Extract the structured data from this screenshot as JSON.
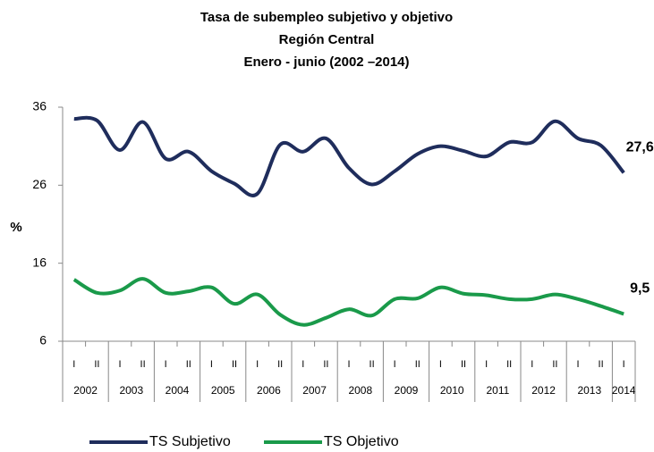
{
  "chart_data": {
    "type": "line",
    "title": [
      "Tasa de subempleo subjetivo y objetivo",
      "Región Central",
      "Enero - junio (2002 –2014)"
    ],
    "ylabel": "%",
    "categories": [
      "I",
      "II",
      "I",
      "II",
      "I",
      "II",
      "I",
      "II",
      "I",
      "II",
      "I",
      "II",
      "I",
      "II",
      "I",
      "II",
      "I",
      "II",
      "I",
      "II",
      "I",
      "II",
      "I",
      "II",
      "I"
    ],
    "years": [
      "2002",
      "2003",
      "2004",
      "2005",
      "2006",
      "2007",
      "2008",
      "2009",
      "2010",
      "2011",
      "2012",
      "2013",
      "2014"
    ],
    "ylim": [
      6,
      36
    ],
    "yticks": [
      6,
      16,
      26,
      36
    ],
    "grid": false,
    "legend": "bottom",
    "series": [
      {
        "name": "TS Subjetivo",
        "color": "#1f2d5c",
        "values": [
          34.5,
          34.3,
          30.5,
          34.1,
          29.4,
          30.3,
          27.8,
          26.2,
          24.9,
          31.2,
          30.3,
          32.0,
          28.2,
          26.1,
          27.8,
          30.0,
          31.0,
          30.4,
          29.7,
          31.5,
          31.5,
          34.2,
          32.0,
          31.1,
          27.6
        ],
        "value_labels": [
          null,
          null,
          null,
          null,
          null,
          null,
          null,
          null,
          null,
          null,
          null,
          null,
          null,
          null,
          null,
          null,
          null,
          null,
          null,
          null,
          null,
          null,
          null,
          null,
          "27,6"
        ]
      },
      {
        "name": "TS Objetivo",
        "color": "#1a9a4a",
        "values": [
          13.9,
          12.2,
          12.5,
          14.0,
          12.2,
          12.4,
          12.9,
          10.8,
          12.0,
          9.4,
          8.1,
          9.0,
          10.1,
          9.3,
          11.4,
          11.5,
          12.9,
          12.1,
          11.9,
          11.4,
          11.4,
          12.0,
          11.4,
          10.5,
          9.5
        ],
        "value_labels": [
          null,
          null,
          null,
          null,
          null,
          null,
          null,
          null,
          null,
          null,
          null,
          null,
          null,
          null,
          null,
          null,
          null,
          null,
          null,
          null,
          null,
          null,
          null,
          null,
          "9,5"
        ]
      }
    ]
  }
}
